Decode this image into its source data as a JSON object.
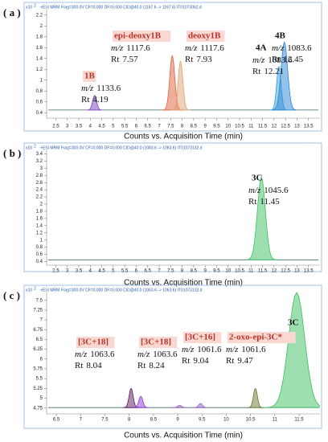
{
  "chart_data": [
    {
      "type": "chromatogram",
      "panel_label": "( a )",
      "header": "+ESI MRM Frag=300.0V CF=0.000 DF=0.000 CID@40.0 (1167.6 -> 1167.6) IT01073062.d",
      "y_multiplier": "x10",
      "y_exponent": 2,
      "x_label": "Counts vs. Acquisition Time (min)",
      "mz_prefix": "m/z",
      "rt_prefix": "Rt",
      "xlim": [
        2.1,
        14
      ],
      "ylim": [
        0.3,
        2.3
      ],
      "xticks": [
        2.5,
        3,
        3.5,
        4,
        4.5,
        5,
        5.5,
        6,
        6.5,
        7,
        7.5,
        8,
        8.5,
        9,
        9.5,
        10,
        10.5,
        11,
        11.5,
        12,
        12.5,
        13,
        13.5
      ],
      "yticks": [
        0.4,
        0.6,
        0.8,
        1,
        1.2,
        1.4,
        1.6,
        1.8,
        2,
        2.2
      ],
      "baseline": 0.45,
      "peaks": {
        "x": [
          4.19,
          7.57,
          7.93,
          12.21,
          12.45
        ],
        "values": [
          0.72,
          1.45,
          1.35,
          1.25,
          1.7
        ],
        "colors": [
          "#7a3fc0",
          "#e0603c",
          "#e0a070",
          "#3aa0d8",
          "#2a86d8"
        ]
      },
      "annotations": [
        {
          "label": "1B",
          "mz": 1133.6,
          "rt": 4.19,
          "highlight": true
        },
        {
          "label": "epi-deoxy1B",
          "mz": 1117.6,
          "rt": 7.57,
          "highlight": true
        },
        {
          "label": "deoxy1B",
          "mz": 1117.6,
          "rt": 7.93,
          "highlight": true
        },
        {
          "label": "4A",
          "mz": 1083.6,
          "rt": 12.21,
          "highlight": false
        },
        {
          "label": "4B",
          "mz": 1083.6,
          "rt": 12.45,
          "highlight": false
        }
      ]
    },
    {
      "type": "chromatogram",
      "panel_label": "( b )",
      "header": "+ESI MRM Frag=300.0V CF=0.000 DF=0.000 CID@40.0 (1083.6 -> 1083.6) IT01073132.d",
      "y_multiplier": "x10",
      "y_exponent": 2,
      "x_label": "Counts vs. Acquisition Time (min)",
      "mz_prefix": "m/z",
      "rt_prefix": "Rt",
      "xlim": [
        2.1,
        14
      ],
      "ylim": [
        0.3,
        3.5
      ],
      "xticks": [
        2.5,
        3,
        3.5,
        4,
        4.5,
        5,
        5.5,
        6,
        6.5,
        7,
        7.5,
        8,
        8.5,
        9,
        9.5,
        10,
        10.5,
        11,
        11.5,
        12,
        12.5,
        13,
        13.5
      ],
      "yticks": [
        0.4,
        0.6,
        0.8,
        1,
        1.2,
        1.4,
        1.6,
        1.8,
        2,
        2.2,
        2.4,
        2.6,
        2.8,
        3,
        3.2,
        3.4
      ],
      "baseline": 0.45,
      "peaks": {
        "x": [
          11.45
        ],
        "values": [
          2.75
        ],
        "colors": [
          "#3cc060"
        ]
      },
      "annotations": [
        {
          "label": "3C",
          "mz": 1045.6,
          "rt": 11.45,
          "highlight": false
        }
      ]
    },
    {
      "type": "chromatogram",
      "panel_label": "( c )",
      "header": "+ESI MRM Frag=300.0V CF=0.000 DF=0.000 CID@40.0 (1063.6 -> 1063.6) IT01073132.d",
      "y_multiplier": "x10",
      "y_exponent": 2,
      "x_label": "Counts vs. Acquisition Time (min)",
      "mz_prefix": "m/z",
      "rt_prefix": "Rt",
      "xlim": [
        6.3,
        11.93
      ],
      "ylim": [
        4.6,
        7.7
      ],
      "xticks": [
        6.5,
        7,
        7.5,
        8,
        8.5,
        9,
        9.5,
        10,
        10.5,
        11,
        11.5
      ],
      "yticks": [
        4.75,
        5,
        5.25,
        5.5,
        5.75,
        6,
        6.25,
        6.5,
        6.75,
        7,
        7.25,
        7.5
      ],
      "baseline": 4.76,
      "peaks": {
        "x": [
          8.04,
          8.24,
          9.04,
          9.47,
          10.6,
          11.45
        ],
        "values": [
          5.25,
          5.05,
          4.82,
          4.86,
          5.25,
          7.7
        ],
        "colors": [
          "#5a1a5a",
          "#8a3ad0",
          "#9a60c0",
          "#9060c0",
          "#6a7a30",
          "#3cc060"
        ]
      },
      "annotations": [
        {
          "label": "[3C+18]",
          "mz": 1063.6,
          "rt": 8.04,
          "highlight": true
        },
        {
          "label": "[3C+18]",
          "mz": 1063.6,
          "rt": 8.24,
          "highlight": true
        },
        {
          "label": "[3C+16]",
          "mz": 1061.6,
          "rt": 9.04,
          "highlight": true
        },
        {
          "label": "2-oxo-epi-3C*",
          "mz": 1061.6,
          "rt": 9.47,
          "highlight": true
        },
        {
          "label": "3C",
          "highlight": false
        }
      ]
    }
  ]
}
